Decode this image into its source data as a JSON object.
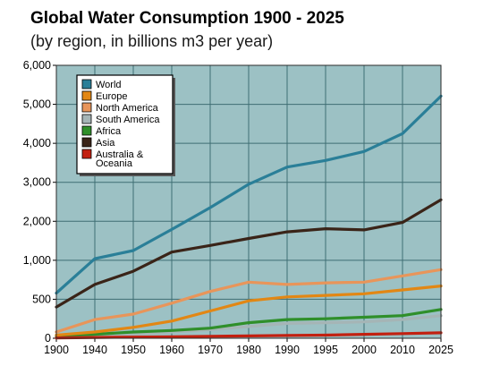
{
  "title": "Global Water Consumption 1900 - 2025",
  "subtitle": "(by region, in billions m3 per year)",
  "colors": {
    "plot_background": "#9cc1c4",
    "grid": "#3e6e73"
  },
  "chart_data": {
    "type": "line",
    "title": "Global Water Consumption 1900 - 2025",
    "subtitle": "(by region, in billions m3 per year)",
    "xlabel": "",
    "ylabel": "",
    "x": [
      1900,
      1940,
      1950,
      1960,
      1970,
      1980,
      1990,
      1995,
      2000,
      2010,
      2025
    ],
    "x_tick_labels": [
      "1900",
      "1940",
      "1950",
      "1960",
      "1970",
      "1980",
      "1990",
      "1995",
      "2000",
      "2010",
      "2025"
    ],
    "y_ticks": [
      0,
      500,
      1000,
      2000,
      3000,
      4000,
      5000,
      6000
    ],
    "y_tick_labels": [
      "0",
      "500",
      "1,000",
      "2,000",
      "3,000",
      "4,000",
      "5,000",
      "6,000"
    ],
    "ylim": [
      0,
      6000
    ],
    "grid": true,
    "legend_position": "top-left",
    "series": [
      {
        "name": "World",
        "color": "#2a7f98",
        "values": [
          580,
          1040,
          1250,
          1790,
          2350,
          2950,
          3390,
          3560,
          3790,
          4250,
          5210
        ]
      },
      {
        "name": "Europe",
        "color": "#e28714",
        "values": [
          40,
          80,
          140,
          220,
          350,
          480,
          530,
          550,
          570,
          620,
          670
        ]
      },
      {
        "name": "North America",
        "color": "#e8955a",
        "values": [
          80,
          240,
          310,
          450,
          600,
          720,
          690,
          710,
          720,
          800,
          880
        ]
      },
      {
        "name": "South America",
        "color": "#a5b5b6",
        "values": [
          10,
          40,
          50,
          80,
          110,
          150,
          190,
          200,
          210,
          240,
          290
        ]
      },
      {
        "name": "Africa",
        "color": "#2f8f2a",
        "values": [
          30,
          50,
          80,
          100,
          130,
          200,
          240,
          250,
          270,
          290,
          370
        ]
      },
      {
        "name": "Asia",
        "color": "#3a2418",
        "values": [
          400,
          690,
          860,
          1210,
          1380,
          1560,
          1730,
          1810,
          1780,
          1970,
          2550
        ]
      },
      {
        "name": "Australia & Oceania",
        "legend_lines": [
          "Australia &",
          "Oceania"
        ],
        "color": "#c22010",
        "values": [
          5,
          10,
          15,
          20,
          25,
          30,
          35,
          40,
          50,
          60,
          70
        ]
      }
    ]
  }
}
